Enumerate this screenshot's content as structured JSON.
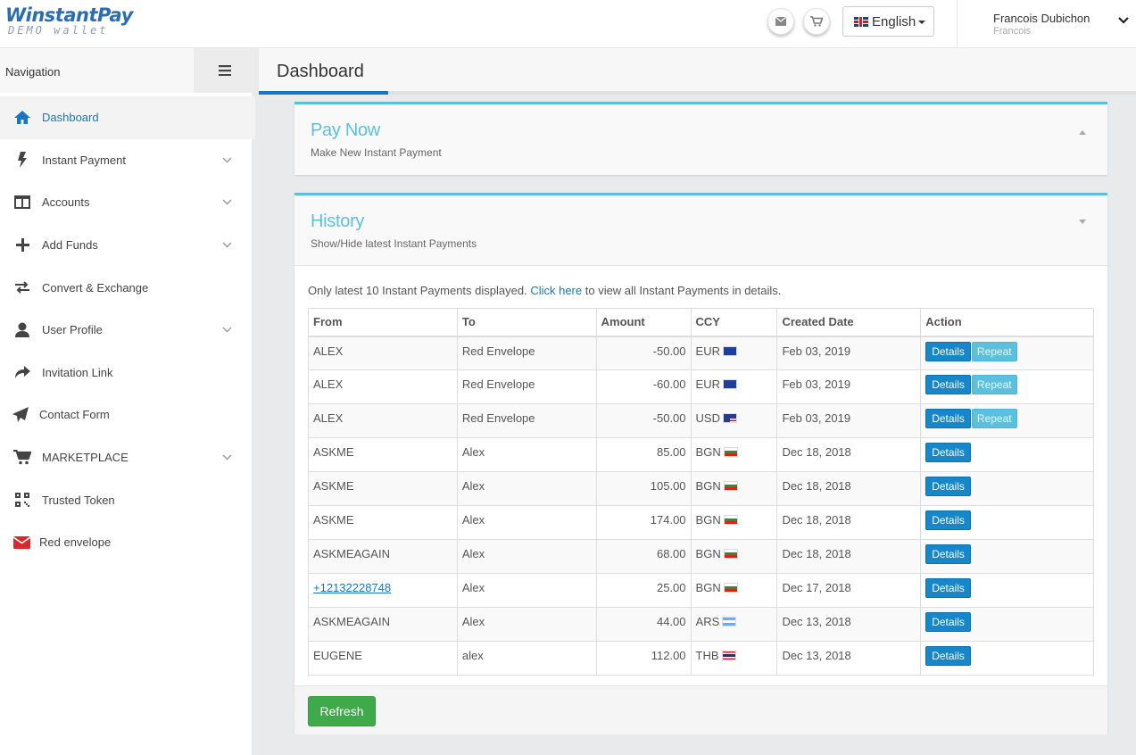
{
  "brand": {
    "name": "WinstantPay",
    "tagline": "DEMO wallet"
  },
  "header": {
    "language": "English",
    "user_name": "Francois Dubichon",
    "user_sub": "Francois"
  },
  "sidebar": {
    "title": "Navigation",
    "items": [
      {
        "label": "Dashboard",
        "icon": "home-icon"
      },
      {
        "label": "Instant Payment",
        "icon": "bolt-icon"
      },
      {
        "label": "Accounts",
        "icon": "columns-icon"
      },
      {
        "label": "Add Funds",
        "icon": "plus-icon"
      },
      {
        "label": "Convert & Exchange",
        "icon": "exchange-icon"
      },
      {
        "label": "User Profile",
        "icon": "user-icon"
      },
      {
        "label": "Invitation Link",
        "icon": "share-icon"
      },
      {
        "label": "Contact Form",
        "icon": "paper-plane-icon"
      },
      {
        "label": "MARKETPLACE",
        "icon": "cart-icon"
      },
      {
        "label": "Trusted Token",
        "icon": "qrcode-icon"
      },
      {
        "label": "Red envelope",
        "icon": "envelope-icon"
      }
    ]
  },
  "page": {
    "title": "Dashboard"
  },
  "pay_now": {
    "title": "Pay Now",
    "subtitle": "Make New Instant Payment"
  },
  "history": {
    "title": "History",
    "subtitle": "Show/Hide latest Instant Payments",
    "info_prefix": "Only latest 10 Instant Payments displayed.",
    "info_link": "Click here",
    "info_suffix": "to view all Instant Payments in details.",
    "columns": [
      "From",
      "To",
      "Amount",
      "CCY",
      "Created Date",
      "Action"
    ],
    "details_label": "Details",
    "repeat_label": "Repeat",
    "refresh_label": "Refresh",
    "rows": [
      {
        "from": "ALEX",
        "to": "Red Envelope",
        "amount": "-50.00",
        "ccy": "EUR",
        "date": "Feb 03, 2019"
      },
      {
        "from": "ALEX",
        "to": "Red Envelope",
        "amount": "-60.00",
        "ccy": "EUR",
        "date": "Feb 03, 2019"
      },
      {
        "from": "ALEX",
        "to": "Red Envelope",
        "amount": "-50.00",
        "ccy": "USD",
        "date": "Feb 03, 2019"
      },
      {
        "from": "ASKME",
        "to": "Alex",
        "amount": "85.00",
        "ccy": "BGN",
        "date": "Dec 18, 2018"
      },
      {
        "from": "ASKME",
        "to": "Alex",
        "amount": "105.00",
        "ccy": "BGN",
        "date": "Dec 18, 2018"
      },
      {
        "from": "ASKME",
        "to": "Alex",
        "amount": "174.00",
        "ccy": "BGN",
        "date": "Dec 18, 2018"
      },
      {
        "from": "ASKMEAGAIN",
        "to": "Alex",
        "amount": "68.00",
        "ccy": "BGN",
        "date": "Dec 18, 2018"
      },
      {
        "from": "+12132228748",
        "to": "Alex",
        "amount": "25.00",
        "ccy": "BGN",
        "date": "Dec 17, 2018"
      },
      {
        "from": "ASKMEAGAIN",
        "to": "Alex",
        "amount": "44.00",
        "ccy": "ARS",
        "date": "Dec 13, 2018"
      },
      {
        "from": "EUGENE",
        "to": "alex",
        "amount": "112.00",
        "ccy": "THB",
        "date": "Dec 13, 2018"
      }
    ]
  },
  "colors": {
    "accent": "#1976c5",
    "panel_title": "#5bc0de",
    "refresh": "#3faa4a"
  }
}
